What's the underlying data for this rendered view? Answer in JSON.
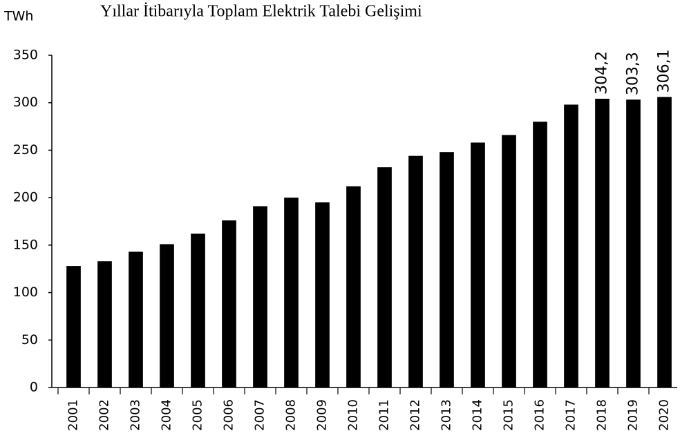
{
  "chart_data": {
    "type": "bar",
    "title": "Yıllar İtibarıyla Toplam Elektrik Talebi Gelişimi",
    "y_axis_label": "TWh",
    "categories": [
      "2001",
      "2002",
      "2003",
      "2004",
      "2005",
      "2006",
      "2007",
      "2008",
      "2009",
      "2010",
      "2011",
      "2012",
      "2013",
      "2014",
      "2015",
      "2016",
      "2017",
      "2018",
      "2019",
      "2020"
    ],
    "values": [
      128,
      133,
      143,
      151,
      162,
      176,
      191,
      200,
      195,
      212,
      232,
      244,
      248,
      258,
      266,
      280,
      298,
      304.2,
      303.3,
      306.1
    ],
    "value_labels": [
      null,
      null,
      null,
      null,
      null,
      null,
      null,
      null,
      null,
      null,
      null,
      null,
      null,
      null,
      null,
      null,
      null,
      "304,2",
      "303,3",
      "306,1"
    ],
    "color": "#000000",
    "ylim": [
      0,
      350
    ],
    "yticks": [
      0,
      50,
      100,
      150,
      200,
      250,
      300,
      350
    ],
    "grid": false
  }
}
